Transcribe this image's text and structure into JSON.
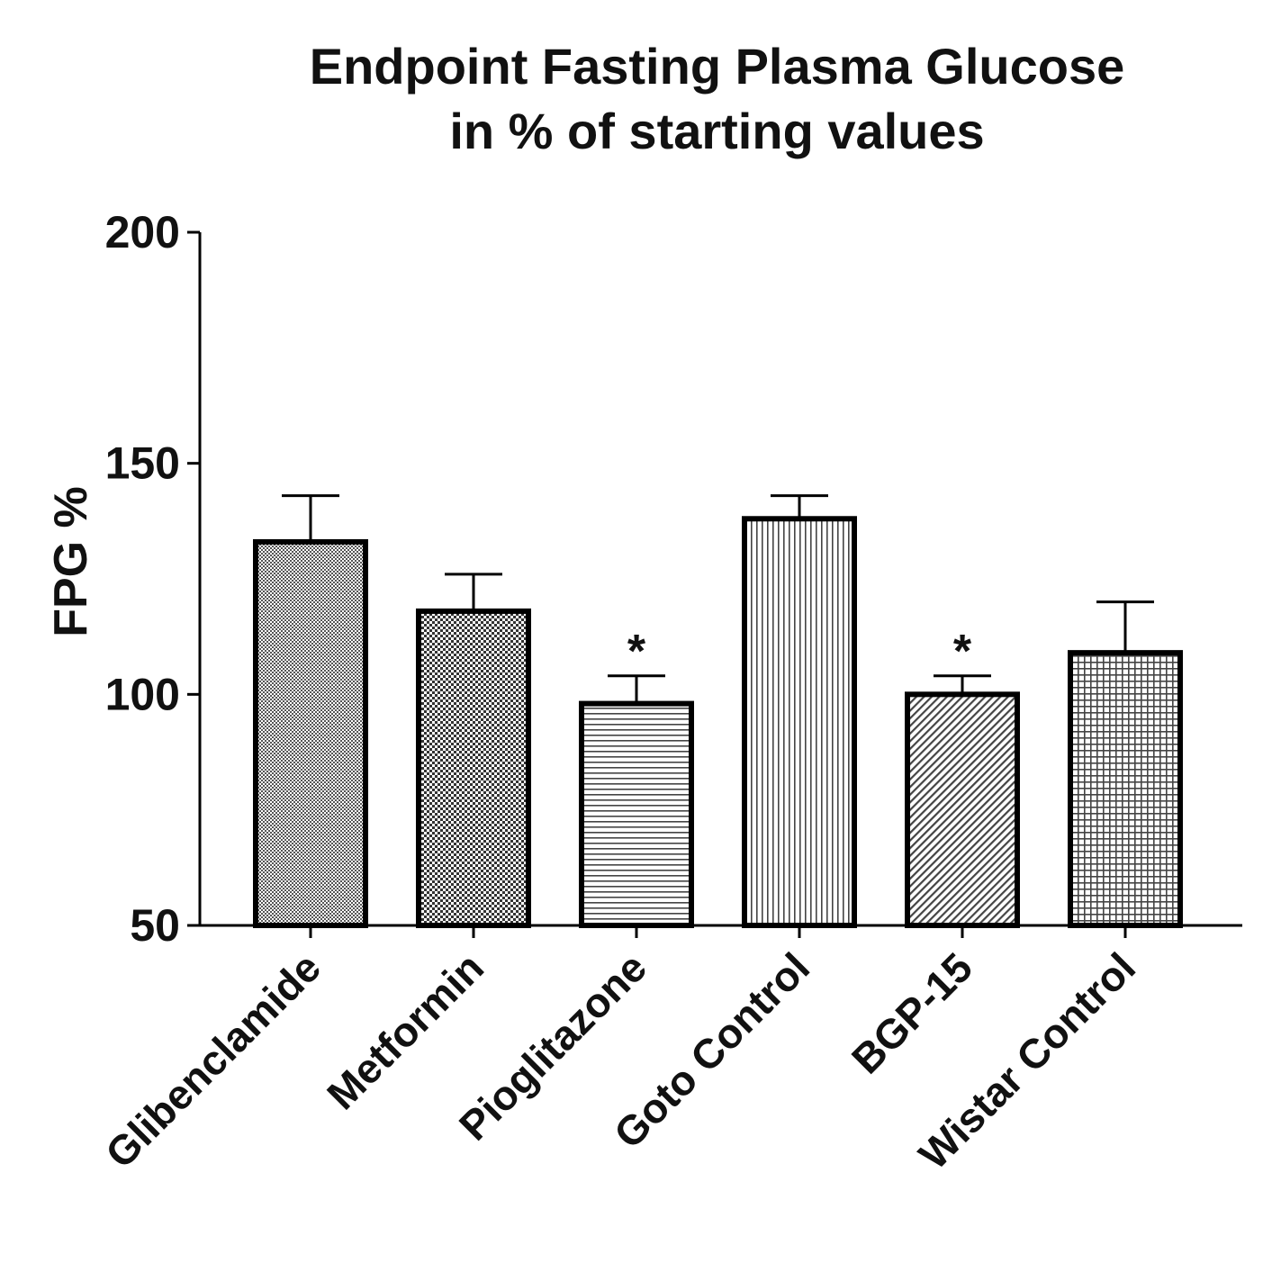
{
  "chart_data": {
    "type": "bar",
    "title": [
      "Endpoint Fasting Plasma Glucose",
      "in % of starting values"
    ],
    "ylabel": "FPG %",
    "xlabel": "",
    "ylim": [
      50,
      200
    ],
    "yticks": [
      50,
      100,
      150,
      200
    ],
    "categories": [
      "Glibenclamide",
      "Metformin",
      "Pioglitazone",
      "Goto Control",
      "BGP-15",
      "Wistar Control"
    ],
    "values": [
      133,
      118,
      98,
      138,
      100,
      109
    ],
    "errors": [
      10,
      8,
      6,
      5,
      4,
      11
    ],
    "annotations": [
      "",
      "",
      "*",
      "",
      "*",
      ""
    ],
    "patterns": [
      "dense-dots",
      "checker",
      "horizontal-lines",
      "vertical-lines",
      "diagonal-lines",
      "grid"
    ],
    "grid": false,
    "legend": "none",
    "colors": {
      "bar_outline": "#000000",
      "pattern": "#444444",
      "background": "#ffffff"
    }
  }
}
